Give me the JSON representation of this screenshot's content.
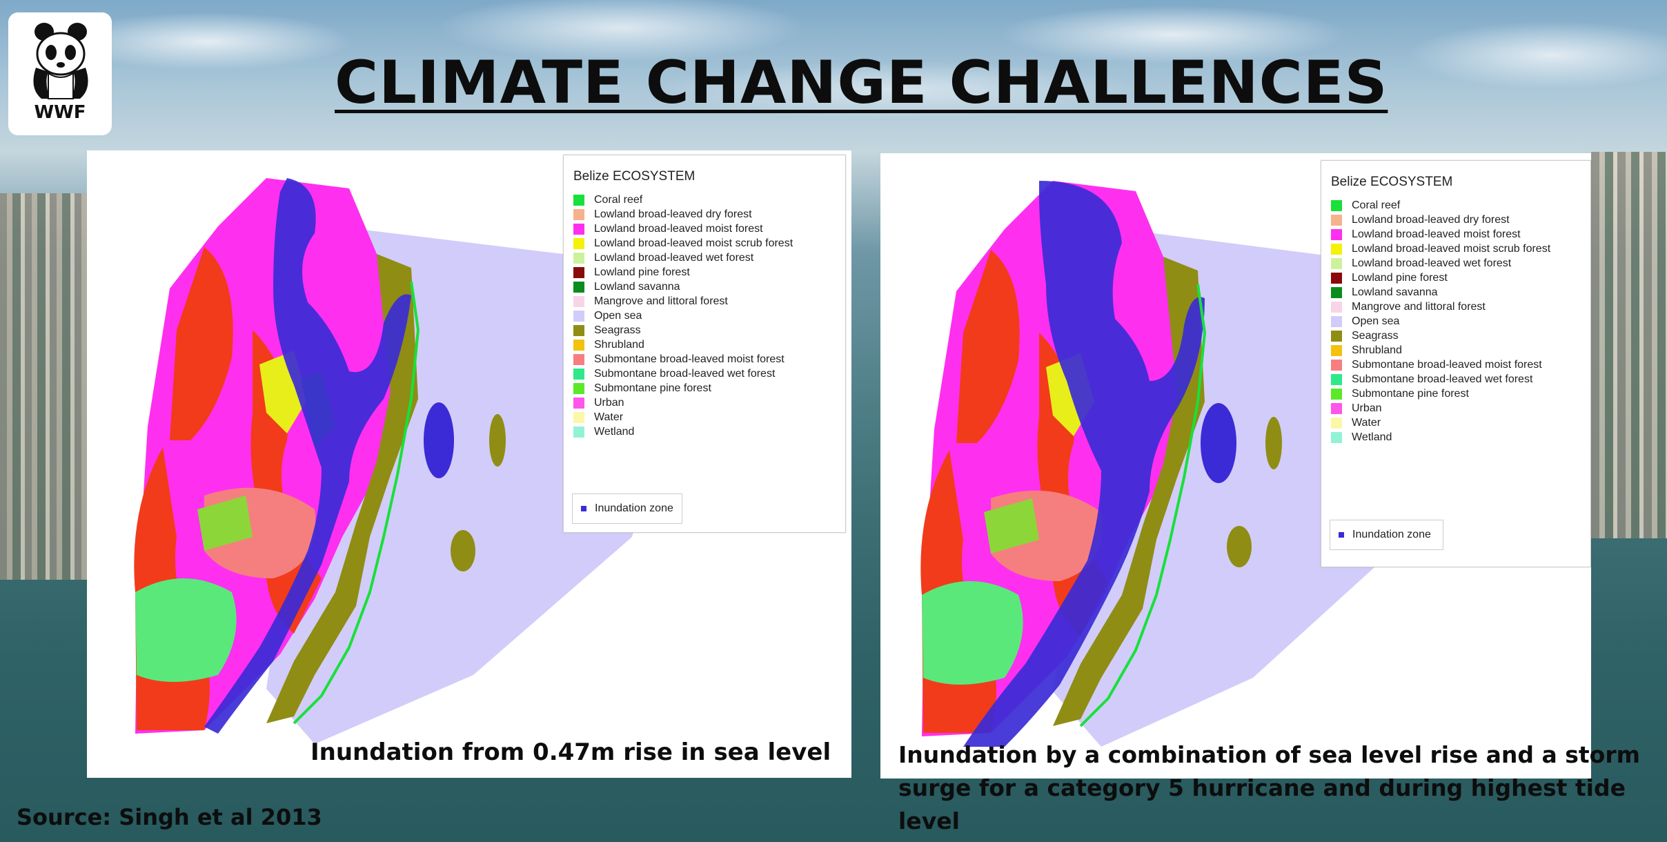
{
  "slide": {
    "title": "CLIMATE CHANGE CHALLENCES",
    "source": "Source: Singh et al 2013",
    "logo_text": "WWF"
  },
  "legend": {
    "title": "Belize ECOSYSTEM",
    "items": [
      {
        "label": "Coral reef",
        "color": "#19e03a"
      },
      {
        "label": "Lowland broad-leaved dry forest",
        "color": "#f6b28b"
      },
      {
        "label": "Lowland broad-leaved moist forest",
        "color": "#ff2ff0"
      },
      {
        "label": "Lowland broad-leaved moist scrub forest",
        "color": "#f4f20a"
      },
      {
        "label": "Lowland broad-leaved wet forest",
        "color": "#cdf29c"
      },
      {
        "label": "Lowland pine forest",
        "color": "#8a0a0a"
      },
      {
        "label": "Lowland savanna",
        "color": "#0b8c1c"
      },
      {
        "label": "Mangrove and littoral forest",
        "color": "#f7d5e6"
      },
      {
        "label": "Open sea",
        "color": "#d2ccfa"
      },
      {
        "label": "Seagrass",
        "color": "#8f8d14"
      },
      {
        "label": "Shrubland",
        "color": "#f2c20e"
      },
      {
        "label": "Submontane broad-leaved moist forest",
        "color": "#f57f7f"
      },
      {
        "label": "Submontane broad-leaved wet forest",
        "color": "#2fe88a"
      },
      {
        "label": "Submontane pine forest",
        "color": "#5ae829"
      },
      {
        "label": "Urban",
        "color": "#ff55e8"
      },
      {
        "label": "Water",
        "color": "#fbf7a8"
      },
      {
        "label": "Wetland",
        "color": "#93f2d6"
      }
    ],
    "inundation_label": "Inundation zone",
    "inundation_color": "#3b2bd6"
  },
  "maps": [
    {
      "caption": "Inundation from 0.47m rise in sea level"
    },
    {
      "caption": "Inundation by a combination of sea level rise and a storm surge for a category 5 hurricane and during highest tide level"
    }
  ]
}
